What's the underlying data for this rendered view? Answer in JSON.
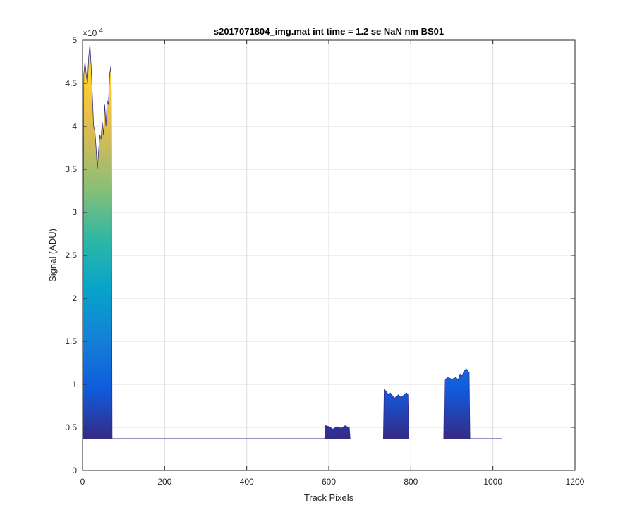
{
  "chart_data": {
    "type": "area",
    "title": "s2017071804_img.mat int time = 1.2 se  NaN nm BS01",
    "xlabel": "Track Pixels",
    "ylabel": "Signal (ADU)",
    "y_exponent_base": "×10",
    "y_exponent_power": "4",
    "xlim": [
      0,
      1200
    ],
    "ylim": [
      0,
      5
    ],
    "y_scale_note": "values in units of 1e4 ADU",
    "grid": true,
    "colormap": [
      "#352a87",
      "#0f5cdd",
      "#1481d6",
      "#06a4ca",
      "#2eb7a4",
      "#87bf77",
      "#d1bb59",
      "#fec832",
      "#f9fb0e"
    ],
    "x_ticks": [
      0,
      200,
      400,
      600,
      800,
      1000,
      1200
    ],
    "x_tick_labels": [
      "0",
      "200",
      "400",
      "600",
      "800",
      "1000",
      "1200"
    ],
    "y_ticks": [
      0,
      0.5,
      1,
      1.5,
      2,
      2.5,
      3,
      3.5,
      4,
      4.5,
      5
    ],
    "y_tick_labels": [
      "0",
      "0.5",
      "1",
      "1.5",
      "2",
      "2.5",
      "3",
      "3.5",
      "4",
      "4.5",
      "5"
    ],
    "baseline": 0.37,
    "series": [
      {
        "x": [
          0,
          3,
          6,
          9,
          12,
          15,
          18,
          21,
          24,
          27,
          30,
          33,
          36,
          39,
          42,
          45,
          48,
          51,
          54,
          57,
          60,
          63,
          66,
          69,
          70,
          72,
          100,
          300,
          500,
          590
        ],
        "y": [
          0.37,
          4.6,
          4.75,
          4.6,
          4.5,
          4.8,
          4.95,
          4.7,
          4.35,
          4.0,
          3.95,
          3.75,
          3.5,
          3.7,
          3.9,
          3.85,
          4.05,
          3.9,
          4.25,
          4.0,
          4.3,
          4.25,
          4.6,
          4.7,
          4.4,
          0.37,
          0.37,
          0.37,
          0.37,
          0.37
        ]
      },
      {
        "x": [
          590,
          592,
          600,
          610,
          620,
          630,
          640,
          648,
          650,
          652
        ],
        "y": [
          0.37,
          0.52,
          0.51,
          0.48,
          0.51,
          0.49,
          0.52,
          0.5,
          0.5,
          0.37
        ]
      },
      {
        "x": [
          733,
          735,
          740,
          745,
          750,
          755,
          760,
          765,
          770,
          775,
          780,
          785,
          790,
          793,
          795
        ],
        "y": [
          0.37,
          0.94,
          0.92,
          0.88,
          0.9,
          0.87,
          0.84,
          0.86,
          0.88,
          0.85,
          0.86,
          0.89,
          0.9,
          0.88,
          0.37
        ]
      },
      {
        "x": [
          880,
          882,
          890,
          900,
          910,
          915,
          920,
          925,
          930,
          935,
          940,
          942,
          944
        ],
        "y": [
          0.37,
          1.05,
          1.08,
          1.06,
          1.08,
          1.05,
          1.12,
          1.1,
          1.16,
          1.18,
          1.15,
          1.14,
          0.37
        ]
      },
      {
        "x": [
          944,
          1000,
          1022
        ],
        "y": [
          0.37,
          0.37,
          0.37
        ]
      }
    ]
  }
}
